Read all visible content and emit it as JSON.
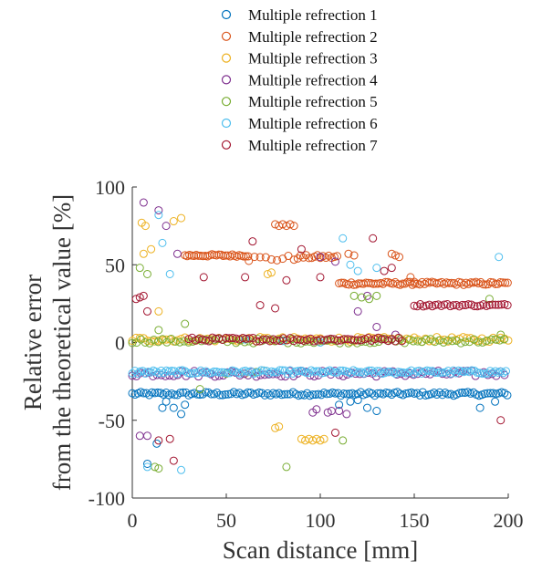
{
  "chart_data": {
    "type": "scatter",
    "xlabel": "Scan distance [mm]",
    "ylabel_line1": "Relative error",
    "ylabel_line2": "from the theoretical value [%]",
    "xlim": [
      0,
      200
    ],
    "ylim": [
      -100,
      100
    ],
    "x_ticks": [
      "0",
      "50",
      "100",
      "150",
      "200"
    ],
    "y_ticks": [
      "100",
      "50",
      "0",
      "-50",
      "-100"
    ],
    "grid": false,
    "legend_position": "top",
    "series": [
      {
        "name": "Multiple refrection 1",
        "color": "#0072BD",
        "segments": [
          {
            "x0": 0,
            "x1": 200,
            "y": -33,
            "step": 1.5,
            "jitter": 1.2
          }
        ],
        "extra_points": [
          [
            8,
            -78
          ],
          [
            13,
            -65
          ],
          [
            16,
            -42
          ],
          [
            18,
            -38
          ],
          [
            22,
            -42
          ],
          [
            26,
            -46
          ],
          [
            28,
            -40
          ],
          [
            110,
            -40
          ],
          [
            116,
            -38
          ],
          [
            120,
            -37
          ],
          [
            125,
            -42
          ],
          [
            130,
            -44
          ],
          [
            185,
            -42
          ],
          [
            193,
            -38
          ]
        ]
      },
      {
        "name": "Multiple refrection 2",
        "color": "#D95319",
        "segments": [
          {
            "x0": 28,
            "x1": 62,
            "y": 56,
            "step": 1.2,
            "jitter": 0.8
          },
          {
            "x0": 62,
            "x1": 88,
            "y": 54,
            "step": 3,
            "jitter": 2
          },
          {
            "x0": 88,
            "x1": 110,
            "y": 55,
            "step": 1.5,
            "jitter": 1.2
          },
          {
            "x0": 110,
            "x1": 200,
            "y": 38,
            "step": 1.3,
            "jitter": 1
          }
        ],
        "extra_points": [
          [
            76,
            76
          ],
          [
            78,
            75
          ],
          [
            80,
            76
          ],
          [
            82,
            75
          ],
          [
            84,
            76
          ],
          [
            86,
            75
          ],
          [
            115,
            57
          ],
          [
            118,
            56
          ],
          [
            138,
            57
          ],
          [
            140,
            56
          ],
          [
            142,
            55
          ],
          [
            148,
            42
          ],
          [
            150,
            39
          ]
        ]
      },
      {
        "name": "Multiple refrection 3",
        "color": "#EDB120",
        "segments": [
          {
            "x0": 0,
            "x1": 200,
            "y": 2,
            "step": 2,
            "jitter": 1.5
          }
        ],
        "extra_points": [
          [
            5,
            77
          ],
          [
            7,
            75
          ],
          [
            22,
            78
          ],
          [
            26,
            80
          ],
          [
            14,
            20
          ],
          [
            10,
            60
          ],
          [
            6,
            57
          ],
          [
            76,
            -55
          ],
          [
            78,
            -54
          ],
          [
            90,
            -62
          ],
          [
            92,
            -63
          ],
          [
            94,
            -62
          ],
          [
            96,
            -63
          ],
          [
            98,
            -62
          ],
          [
            100,
            -63
          ],
          [
            102,
            -62
          ],
          [
            60,
            -20
          ],
          [
            70,
            -18
          ],
          [
            72,
            44
          ],
          [
            74,
            45
          ]
        ]
      },
      {
        "name": "Multiple refrection 4",
        "color": "#7E2F8E",
        "segments": [
          {
            "x0": 0,
            "x1": 200,
            "y": -20,
            "step": 2.2,
            "jitter": 2
          }
        ],
        "extra_points": [
          [
            6,
            90
          ],
          [
            14,
            85
          ],
          [
            18,
            75
          ],
          [
            24,
            57
          ],
          [
            4,
            -60
          ],
          [
            8,
            -60
          ],
          [
            96,
            -45
          ],
          [
            98,
            -43
          ],
          [
            104,
            -45
          ],
          [
            106,
            -44
          ],
          [
            110,
            -44
          ],
          [
            114,
            -46
          ],
          [
            120,
            20
          ],
          [
            125,
            30
          ],
          [
            130,
            10
          ],
          [
            140,
            5
          ],
          [
            100,
            55
          ],
          [
            108,
            52
          ]
        ]
      },
      {
        "name": "Multiple refrection 5",
        "color": "#77AC30",
        "segments": [
          {
            "x0": 0,
            "x1": 200,
            "y": 1,
            "step": 2.3,
            "jitter": 1.5
          }
        ],
        "extra_points": [
          [
            4,
            48
          ],
          [
            8,
            44
          ],
          [
            14,
            8
          ],
          [
            28,
            12
          ],
          [
            36,
            -30
          ],
          [
            50,
            -20
          ],
          [
            66,
            -19
          ],
          [
            82,
            -80
          ],
          [
            112,
            -63
          ],
          [
            118,
            30
          ],
          [
            122,
            29
          ],
          [
            126,
            28
          ],
          [
            130,
            30
          ],
          [
            12,
            -80
          ],
          [
            14,
            -81
          ],
          [
            190,
            28
          ],
          [
            196,
            5
          ]
        ]
      },
      {
        "name": "Multiple refrection 6",
        "color": "#4DBEEE",
        "segments": [
          {
            "x0": 0,
            "x1": 200,
            "y": -19,
            "step": 1.4,
            "jitter": 1.2
          }
        ],
        "extra_points": [
          [
            14,
            82
          ],
          [
            16,
            64
          ],
          [
            20,
            44
          ],
          [
            8,
            -80
          ],
          [
            26,
            -82
          ],
          [
            112,
            67
          ],
          [
            116,
            50
          ],
          [
            120,
            46
          ],
          [
            130,
            48
          ],
          [
            195,
            55
          ],
          [
            60,
            2
          ],
          [
            80,
            1
          ],
          [
            100,
            0
          ]
        ]
      },
      {
        "name": "Multiple refrection 7",
        "color": "#A2142F",
        "segments": [
          {
            "x0": 30,
            "x1": 145,
            "y": 2,
            "step": 1.8,
            "jitter": 1.2
          },
          {
            "x0": 150,
            "x1": 200,
            "y": 24,
            "step": 1.6,
            "jitter": 0.8
          }
        ],
        "extra_points": [
          [
            2,
            28
          ],
          [
            4,
            29
          ],
          [
            6,
            30
          ],
          [
            8,
            20
          ],
          [
            14,
            -63
          ],
          [
            20,
            -62
          ],
          [
            22,
            -76
          ],
          [
            38,
            42
          ],
          [
            60,
            42
          ],
          [
            64,
            65
          ],
          [
            68,
            24
          ],
          [
            76,
            22
          ],
          [
            82,
            40
          ],
          [
            90,
            60
          ],
          [
            100,
            42
          ],
          [
            108,
            -58
          ],
          [
            128,
            67
          ],
          [
            134,
            46
          ],
          [
            138,
            48
          ],
          [
            196,
            -50
          ]
        ]
      }
    ]
  }
}
